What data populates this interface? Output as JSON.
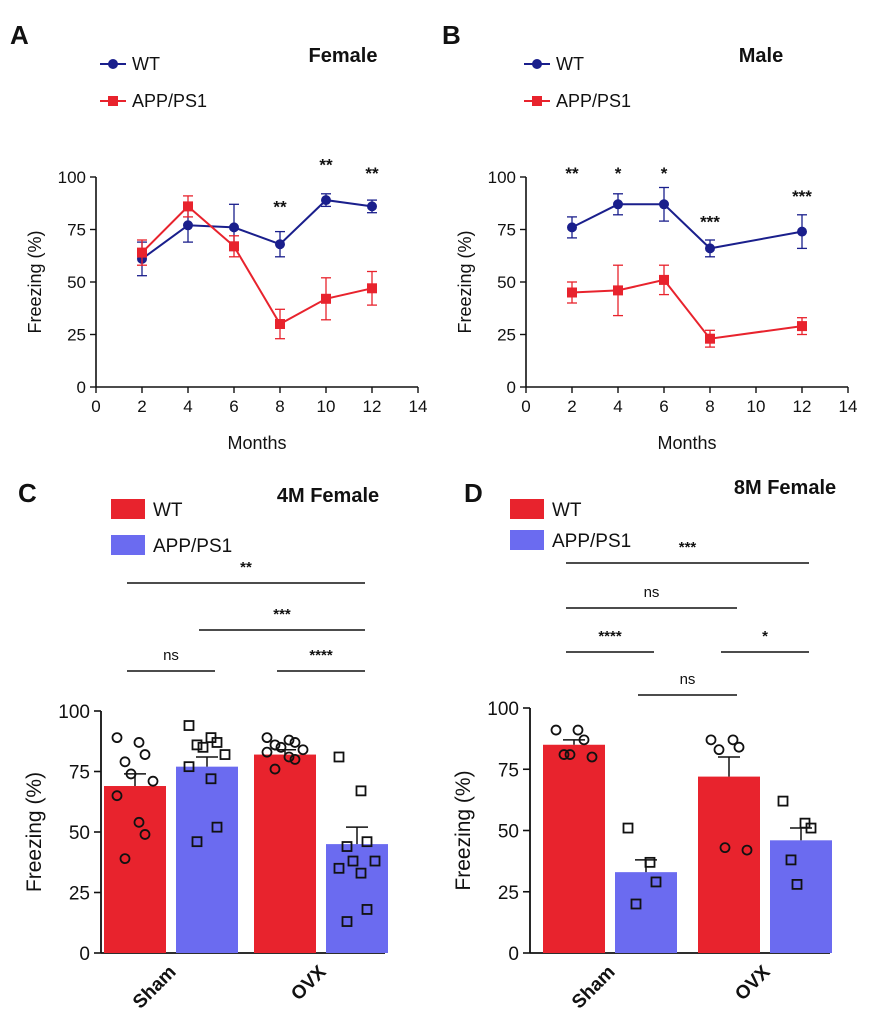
{
  "panel_labels": [
    "A",
    "B",
    "C",
    "D"
  ],
  "colors": {
    "wt_blue": "#1a1f8c",
    "app_red": "#e8232d",
    "bar_red": "#e8232d",
    "bar_blue": "#6b6bf0",
    "axis": "#111111"
  },
  "chart_data": [
    {
      "panel": "A",
      "type": "line",
      "title": "Female",
      "xlabel": "Months",
      "ylabel": "Freezing (%)",
      "xlim": [
        0,
        14
      ],
      "ylim": [
        0,
        100
      ],
      "xticks": [
        "0",
        "2",
        "4",
        "6",
        "8",
        "10",
        "12",
        "14"
      ],
      "yticks": [
        "0",
        "25",
        "50",
        "75",
        "100"
      ],
      "legend_placement": "top-left",
      "series": [
        {
          "name": "WT",
          "color": "#1a1f8c",
          "marker": "circle",
          "x": [
            2,
            4,
            6,
            8,
            10,
            12
          ],
          "y": [
            61,
            77,
            76,
            68,
            89,
            86
          ],
          "err": [
            8,
            8,
            11,
            6,
            3,
            3
          ]
        },
        {
          "name": "APP/PS1",
          "color": "#e8232d",
          "marker": "square",
          "x": [
            2,
            4,
            6,
            8,
            10,
            12
          ],
          "y": [
            64,
            86,
            67,
            30,
            42,
            47
          ],
          "err": [
            6,
            5,
            5,
            7,
            10,
            8
          ]
        }
      ],
      "annotations": [
        {
          "x": 8,
          "y": 83,
          "text": "**"
        },
        {
          "x": 10,
          "y": 103,
          "text": "**"
        },
        {
          "x": 12,
          "y": 99,
          "text": "**"
        }
      ]
    },
    {
      "panel": "B",
      "type": "line",
      "title": "Male",
      "xlabel": "Months",
      "ylabel": "Freezing (%)",
      "xlim": [
        0,
        14
      ],
      "ylim": [
        0,
        100
      ],
      "xticks": [
        "0",
        "2",
        "4",
        "6",
        "8",
        "10",
        "12",
        "14"
      ],
      "yticks": [
        "0",
        "25",
        "50",
        "75",
        "100"
      ],
      "legend_placement": "top-left",
      "series": [
        {
          "name": "WT",
          "color": "#1a1f8c",
          "marker": "circle",
          "x": [
            2,
            4,
            6,
            8,
            12
          ],
          "y": [
            76,
            87,
            87,
            66,
            74
          ],
          "err": [
            5,
            5,
            8,
            4,
            8
          ]
        },
        {
          "name": "APP/PS1",
          "color": "#e8232d",
          "marker": "square",
          "x": [
            2,
            4,
            6,
            8,
            12
          ],
          "y": [
            45,
            46,
            51,
            23,
            29
          ],
          "err": [
            5,
            12,
            7,
            4,
            4
          ]
        }
      ],
      "annotations": [
        {
          "x": 2,
          "y": 99,
          "text": "**"
        },
        {
          "x": 4,
          "y": 99,
          "text": "*"
        },
        {
          "x": 6,
          "y": 99,
          "text": "*"
        },
        {
          "x": 8,
          "y": 76,
          "text": "***"
        },
        {
          "x": 12,
          "y": 88,
          "text": "***"
        }
      ]
    },
    {
      "panel": "C",
      "type": "bar",
      "title": "4M Female",
      "xlabel": "",
      "ylabel": "Freezing (%)",
      "ylim": [
        0,
        100
      ],
      "yticks": [
        "0",
        "25",
        "50",
        "75",
        "100"
      ],
      "categories": [
        "Sham",
        "OVX"
      ],
      "legend_placement": "top-left",
      "series": [
        {
          "name": "WT",
          "color": "#e8232d",
          "marker": "circle",
          "values": [
            69,
            82
          ],
          "err": [
            5,
            2
          ],
          "points": [
            [
              89,
              87,
              82,
              79,
              74,
              71,
              65,
              54,
              49,
              39
            ],
            [
              89,
              88,
              87,
              86,
              85,
              84,
              83,
              81,
              80,
              76
            ]
          ]
        },
        {
          "name": "APP/PS1",
          "color": "#6b6bf0",
          "marker": "square",
          "values": [
            77,
            45
          ],
          "err": [
            4,
            7
          ],
          "points": [
            [
              94,
              89,
              87,
              86,
              85,
              82,
              77,
              72,
              52,
              46
            ],
            [
              81,
              67,
              46,
              44,
              38,
              38,
              35,
              33,
              18,
              13
            ]
          ]
        }
      ],
      "brackets": [
        {
          "from": [
            0,
            0
          ],
          "to": [
            0,
            1
          ],
          "level": 0,
          "text": "ns"
        },
        {
          "from": [
            1,
            0
          ],
          "to": [
            1,
            1
          ],
          "level": 0,
          "text": "****"
        },
        {
          "from": [
            0,
            1
          ],
          "to": [
            1,
            1
          ],
          "level": 1,
          "text": "***"
        },
        {
          "from": [
            0,
            0
          ],
          "to": [
            1,
            1
          ],
          "level": 2,
          "text": "**"
        }
      ]
    },
    {
      "panel": "D",
      "type": "bar",
      "title": "8M Female",
      "xlabel": "",
      "ylabel": "Freezing (%)",
      "ylim": [
        0,
        100
      ],
      "yticks": [
        "0",
        "25",
        "50",
        "75",
        "100"
      ],
      "categories": [
        "Sham",
        "OVX"
      ],
      "legend_placement": "top-left",
      "series": [
        {
          "name": "WT",
          "color": "#e8232d",
          "marker": "circle",
          "values": [
            85,
            72
          ],
          "err": [
            2,
            8
          ],
          "points": [
            [
              91,
              91,
              87,
              81,
              81,
              80
            ],
            [
              87,
              87,
              84,
              83,
              43,
              42
            ]
          ]
        },
        {
          "name": "APP/PS1",
          "color": "#6b6bf0",
          "marker": "square",
          "values": [
            33,
            46
          ],
          "err": [
            5,
            5
          ],
          "points": [
            [
              51,
              37,
              29,
              20
            ],
            [
              62,
              53,
              51,
              38,
              28
            ]
          ]
        }
      ],
      "brackets": [
        {
          "from": [
            0,
            1
          ],
          "to": [
            1,
            0
          ],
          "level": 0,
          "text": "ns"
        },
        {
          "from": [
            0,
            0
          ],
          "to": [
            0,
            1
          ],
          "level": 1,
          "text": "****"
        },
        {
          "from": [
            1,
            0
          ],
          "to": [
            1,
            1
          ],
          "level": 1,
          "text": "*"
        },
        {
          "from": [
            0,
            0
          ],
          "to": [
            1,
            0
          ],
          "level": 2,
          "text": "ns"
        },
        {
          "from": [
            0,
            0
          ],
          "to": [
            1,
            1
          ],
          "level": 3,
          "text": "***"
        }
      ]
    }
  ]
}
